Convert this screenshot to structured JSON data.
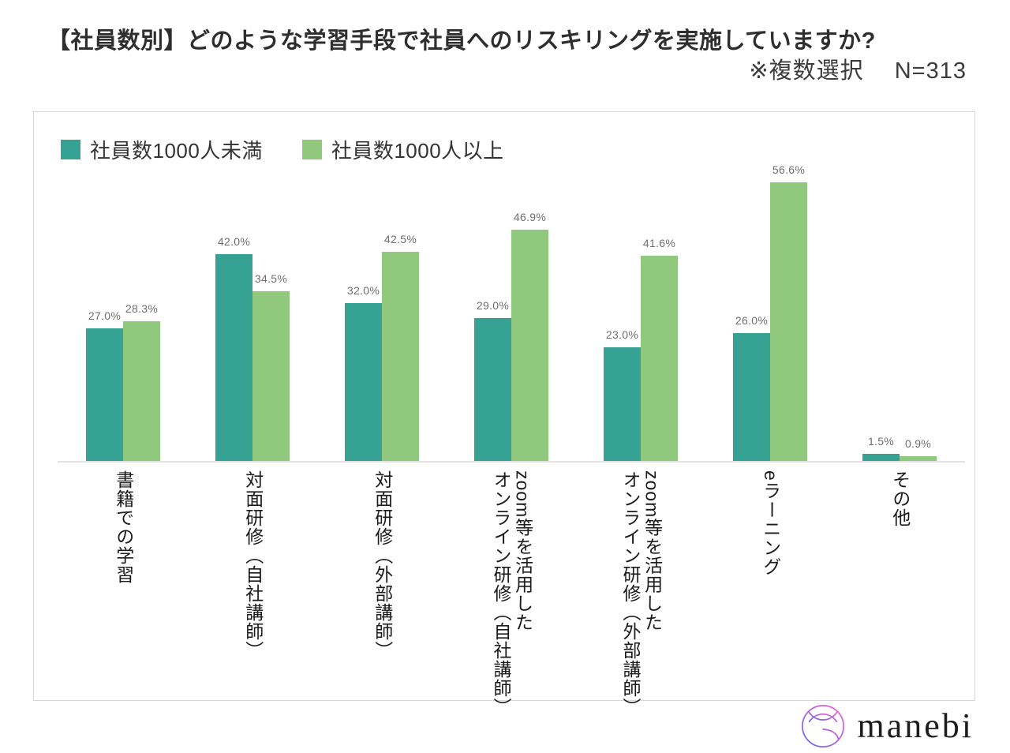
{
  "title": "【社員数別】どのような学習手段で社員へのリスキリングを実施していますか?",
  "subtitle": "※複数選択　 N=313",
  "legend": [
    {
      "label": "社員数1000人未満",
      "color": "#36a293"
    },
    {
      "label": "社員数1000人以上",
      "color": "#90c97e"
    }
  ],
  "chart_data": {
    "type": "bar",
    "title": "【社員数別】どのような学習手段で社員へのリスキリングを実施していますか?",
    "note": "※複数選択",
    "sample_size": "N=313",
    "categories": [
      "書籍での学習",
      "対面研修（自社講師）",
      "対面研修（外部講師）",
      "zoom等を活用した\nオンライン研修（自社講師）",
      "zoom等を活用した\nオンライン研修（外部講師）",
      "eラーニング",
      "その他"
    ],
    "series": [
      {
        "name": "社員数1000人未満",
        "color": "#36a293",
        "values": [
          27.0,
          42.0,
          32.0,
          29.0,
          23.0,
          26.0,
          1.5
        ]
      },
      {
        "name": "社員数1000人以上",
        "color": "#90c97e",
        "values": [
          28.3,
          34.5,
          42.5,
          46.9,
          41.6,
          56.6,
          0.9
        ]
      }
    ],
    "value_suffix": "%",
    "ylim": [
      0,
      60
    ],
    "grid": false,
    "axis_labels_orientation": "vertical",
    "legend_position": "top-left"
  },
  "logo": {
    "text": "manebi",
    "gradient": [
      "#6a63ee",
      "#f265cf"
    ]
  },
  "colors": {
    "series1": "#36a293",
    "series2": "#90c97e",
    "axis_line": "#e3e3e3",
    "value_label": "#6e6e6e",
    "panel_border": "#d8d8d8"
  }
}
